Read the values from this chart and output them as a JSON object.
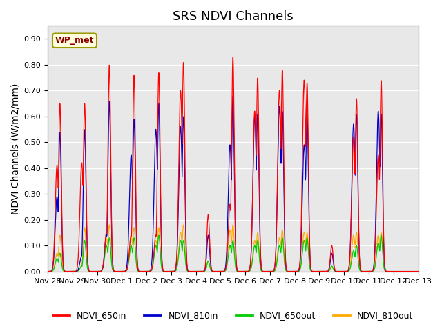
{
  "title": "SRS NDVI Channels",
  "ylabel": "NDVI Channels (W/m2/mm)",
  "annotation": "WP_met",
  "ylim": [
    0.0,
    0.95
  ],
  "yticks": [
    0.0,
    0.1,
    0.2,
    0.3,
    0.4,
    0.5,
    0.6,
    0.7,
    0.8,
    0.9
  ],
  "xtick_labels": [
    "Nov 28",
    "Nov 29",
    "Nov 30",
    "Dec 1",
    "Dec 2",
    "Dec 3",
    "Dec 4",
    "Dec 5",
    "Dec 6",
    "Dec 7",
    "Dec 8",
    "Dec 9",
    "Dec 10",
    "Dec 11",
    "Dec 12",
    "Dec 13"
  ],
  "legend_labels": [
    "NDVI_650in",
    "NDVI_810in",
    "NDVI_650out",
    "NDVI_810out"
  ],
  "legend_colors": [
    "#ff0000",
    "#0000cc",
    "#00cc00",
    "#ffaa00"
  ],
  "background_color": "#e8e8e8",
  "title_fontsize": 13,
  "axis_fontsize": 10,
  "tick_fontsize": 8,
  "day_peaks_650in": [
    0.65,
    0.65,
    0.8,
    0.76,
    0.77,
    0.81,
    0.22,
    0.83,
    0.75,
    0.78,
    0.73,
    0.1,
    0.67,
    0.74,
    0.0
  ],
  "day_peaks_810in": [
    0.54,
    0.55,
    0.66,
    0.59,
    0.65,
    0.6,
    0.14,
    0.68,
    0.61,
    0.62,
    0.61,
    0.07,
    0.61,
    0.61,
    0.0
  ],
  "day_peaks_650out": [
    0.07,
    0.12,
    0.13,
    0.13,
    0.14,
    0.12,
    0.04,
    0.12,
    0.12,
    0.13,
    0.13,
    0.02,
    0.1,
    0.14,
    0.0
  ],
  "day_peaks_810out": [
    0.14,
    0.17,
    0.18,
    0.17,
    0.17,
    0.18,
    0.04,
    0.18,
    0.15,
    0.16,
    0.15,
    0.02,
    0.15,
    0.15,
    0.0
  ],
  "day_secondary_650in": [
    0.41,
    0.42,
    0.15,
    0.14,
    0.14,
    0.7,
    0.0,
    0.26,
    0.62,
    0.7,
    0.74,
    0.0,
    0.52,
    0.45,
    0.0
  ],
  "day_secondary_810in": [
    0.29,
    0.06,
    0.14,
    0.45,
    0.55,
    0.56,
    0.0,
    0.49,
    0.6,
    0.64,
    0.49,
    0.0,
    0.57,
    0.62,
    0.0
  ],
  "day_secondary_650out": [
    0.05,
    0.02,
    0.1,
    0.1,
    0.1,
    0.12,
    0.0,
    0.1,
    0.1,
    0.1,
    0.12,
    0.0,
    0.08,
    0.11,
    0.0
  ],
  "day_secondary_810out": [
    0.07,
    0.02,
    0.13,
    0.14,
    0.12,
    0.15,
    0.0,
    0.16,
    0.12,
    0.13,
    0.15,
    0.0,
    0.14,
    0.14,
    0.0
  ]
}
